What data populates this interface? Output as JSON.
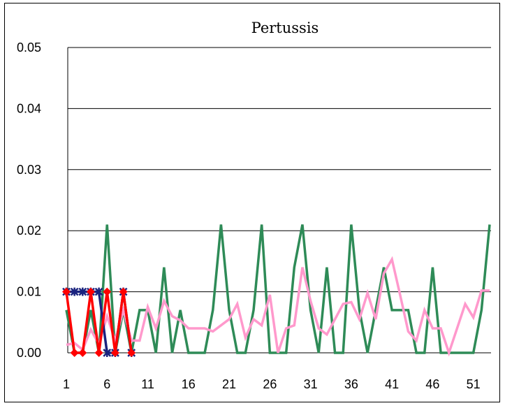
{
  "chart_data": {
    "type": "line",
    "title": "Pertussis",
    "xlabel": "",
    "ylabel": "",
    "ylim": [
      0,
      0.05
    ],
    "xlim": [
      1,
      53
    ],
    "y_ticks": [
      "0.00",
      "0.01",
      "0.02",
      "0.03",
      "0.04",
      "0.05"
    ],
    "x_ticks": [
      "1",
      "6",
      "11",
      "16",
      "21",
      "26",
      "31",
      "36",
      "41",
      "46",
      "51"
    ],
    "grid": "horizontal",
    "legend": "none",
    "series": [
      {
        "color": "#2e8b57",
        "marker": "none",
        "x": [
          1,
          2,
          3,
          4,
          5,
          6,
          7,
          8,
          9,
          10,
          11,
          12,
          13,
          14,
          15,
          16,
          17,
          18,
          19,
          20,
          21,
          22,
          23,
          24,
          25,
          26,
          27,
          28,
          29,
          30,
          31,
          32,
          33,
          34,
          35,
          36,
          37,
          38,
          39,
          40,
          41,
          42,
          43,
          44,
          45,
          46,
          47,
          48,
          49,
          50,
          51,
          52,
          53
        ],
        "values": [
          0.007,
          0,
          0,
          0.007,
          0,
          0.021,
          0,
          0.007,
          0,
          0.007,
          0.007,
          0,
          0.014,
          0,
          0.007,
          0,
          0,
          0,
          0.007,
          0.021,
          0.007,
          0,
          0,
          0.007,
          0.021,
          0,
          0,
          0,
          0.014,
          0.021,
          0.007,
          0,
          0.014,
          0,
          0,
          0.021,
          0.007,
          0,
          0.007,
          0.014,
          0.007,
          0.007,
          0.007,
          0,
          0,
          0.014,
          0,
          0,
          0,
          0,
          0,
          0.007,
          0.021
        ]
      },
      {
        "color": "#ff99cc",
        "marker": "none",
        "x": [
          1,
          2,
          3,
          4,
          5,
          6,
          7,
          8,
          9,
          10,
          11,
          12,
          13,
          14,
          15,
          16,
          17,
          18,
          19,
          20,
          21,
          22,
          23,
          24,
          25,
          26,
          27,
          28,
          29,
          30,
          31,
          32,
          33,
          34,
          35,
          36,
          37,
          38,
          39,
          40,
          41,
          42,
          43,
          44,
          45,
          46,
          47,
          48,
          49,
          50,
          51,
          52,
          53
        ],
        "values": [
          0.0013,
          0.0016,
          0.0005,
          0.0038,
          0.0014,
          0.006,
          0.002,
          0.007,
          0.002,
          0.002,
          0.0075,
          0.004,
          0.0085,
          0.006,
          0.0053,
          0.004,
          0.004,
          0.004,
          0.0035,
          0.0045,
          0.0055,
          0.008,
          0.0025,
          0.0055,
          0.0045,
          0.0095,
          0,
          0.004,
          0.0045,
          0.014,
          0.0085,
          0.004,
          0.003,
          0.0055,
          0.008,
          0.0083,
          0.0055,
          0.0098,
          0.0055,
          0.013,
          0.0153,
          0.0095,
          0.0035,
          0.002,
          0.007,
          0.004,
          0.004,
          0,
          0.004,
          0.008,
          0.0058,
          0.0102,
          0.0102
        ]
      },
      {
        "color": "#1a237e",
        "marker": "asterisk",
        "x": [
          1,
          2,
          3,
          4,
          5,
          6,
          7,
          8,
          9
        ],
        "values": [
          0.01,
          0.01,
          0.01,
          0.01,
          0.01,
          0,
          0,
          0.01,
          0
        ]
      },
      {
        "color": "#ff0000",
        "marker": "diamond",
        "x": [
          1,
          2,
          3,
          4,
          5,
          6,
          7,
          8,
          9
        ],
        "values": [
          0.01,
          0,
          0,
          0.01,
          0,
          0.01,
          0,
          0.01,
          0
        ]
      }
    ]
  }
}
